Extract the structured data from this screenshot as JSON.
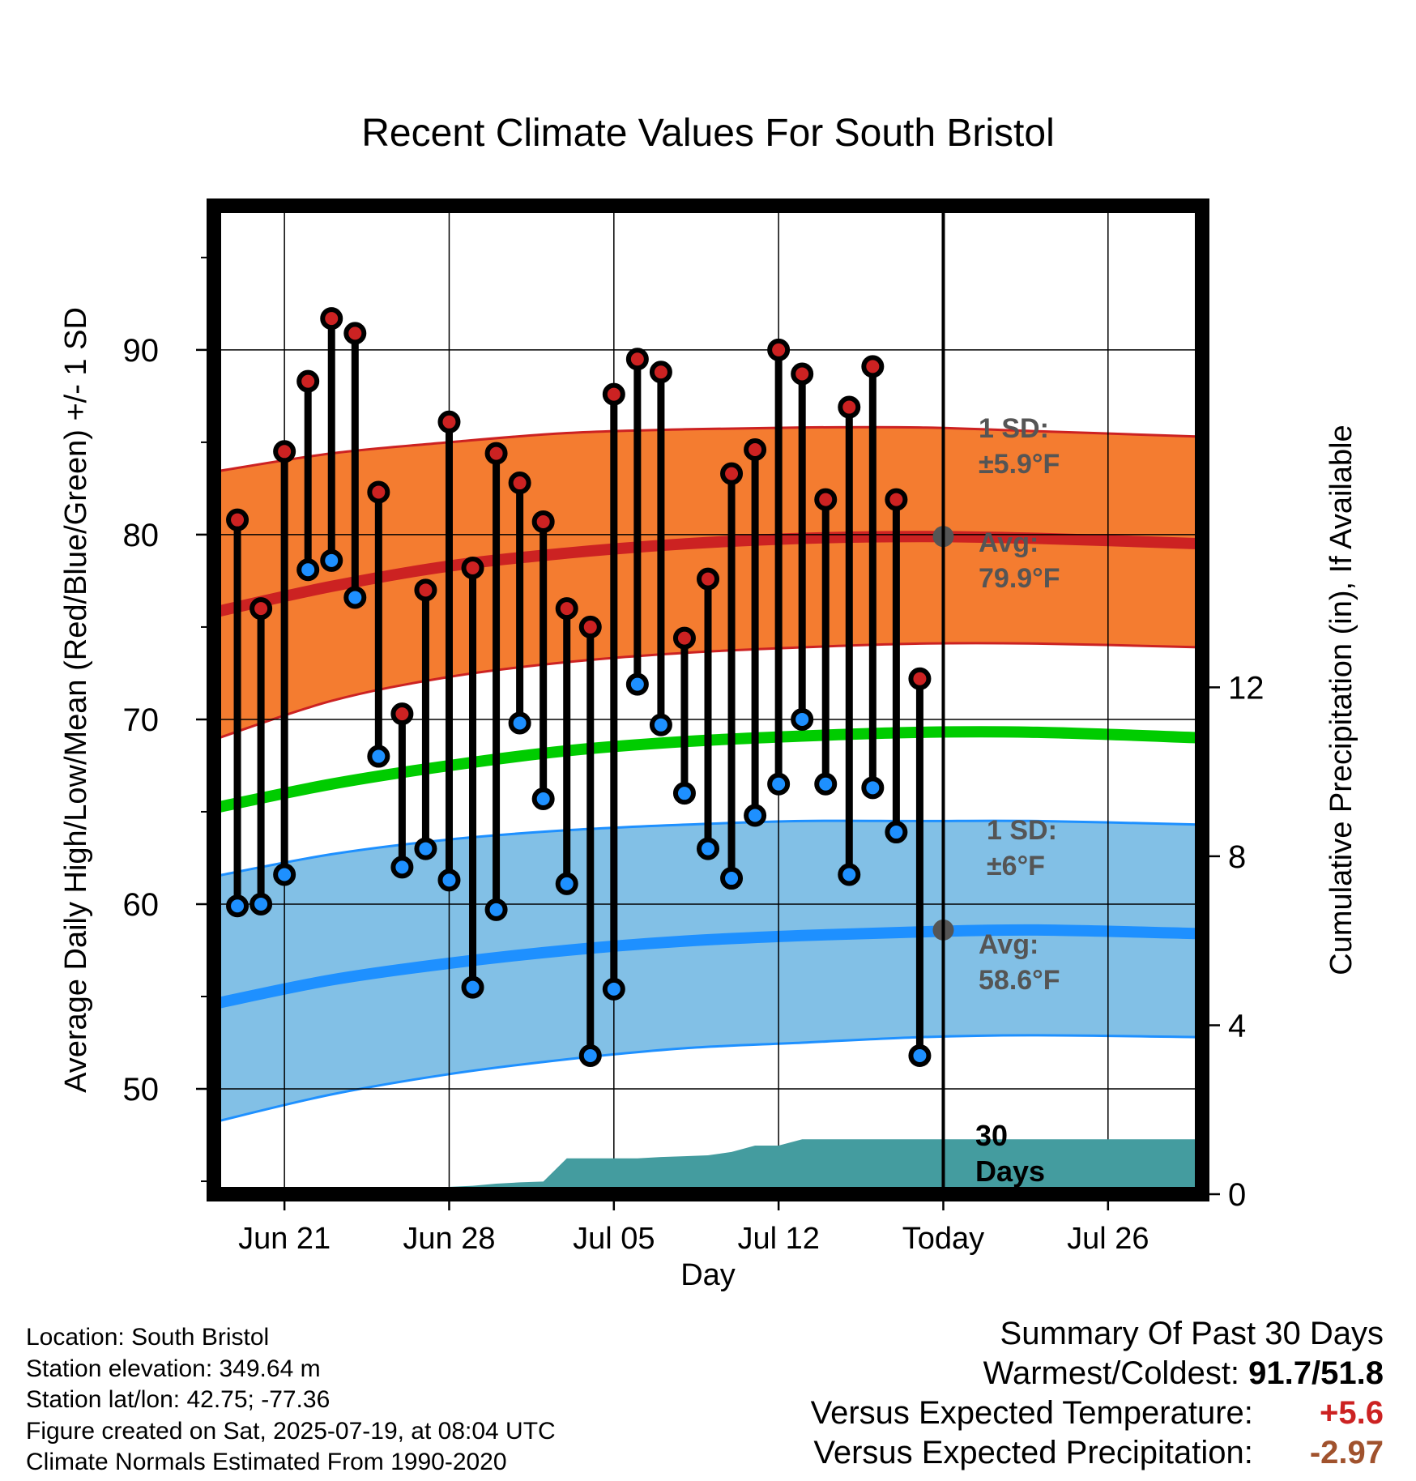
{
  "title": "Recent Climate Values For South Bristol",
  "footer": {
    "location": "Location: South Bristol",
    "elevation": "Station elevation: 349.64 m",
    "latlon": "Station lat/lon: 42.75; -77.36",
    "created": "Figure created on Sat, 2025-07-19, at 08:04 UTC",
    "normals": "Climate Normals Estimated From 1990-2020"
  },
  "summary": {
    "heading": "Summary Of Past 30 Days",
    "warmest_label": "Warmest/Coldest:",
    "warmest_value": "91.7/51.8",
    "temp_label": "Versus Expected Temperature:",
    "temp_value": "+5.6",
    "precip_label": "Versus Expected Precipitation:",
    "precip_value": "-2.97"
  },
  "chart_data": {
    "type": "line",
    "title": "Recent Climate Values For South Bristol",
    "xlabel": "Day",
    "ylabel": "Average Daily High/Low/Mean (Red/Blue/Green) +/- 1 SD",
    "y2label": "Cumulative Precipitation (in), If Available",
    "xlim": [
      "2025-06-18",
      "2025-07-30"
    ],
    "ylim": [
      44.3,
      97.8
    ],
    "y2lim": [
      0,
      23.4
    ],
    "x_ticks": [
      {
        "date": "2025-06-21",
        "label": "Jun 21"
      },
      {
        "date": "2025-06-28",
        "label": "Jun 28"
      },
      {
        "date": "2025-07-05",
        "label": "Jul 05"
      },
      {
        "date": "2025-07-12",
        "label": "Jul 12"
      },
      {
        "date": "2025-07-19",
        "label": "Today"
      },
      {
        "date": "2025-07-26",
        "label": "Jul 26"
      }
    ],
    "y_ticks": [
      50,
      60,
      70,
      80,
      90
    ],
    "y2_ticks": [
      0,
      4,
      8,
      12
    ],
    "grid": true,
    "colors": {
      "high": "#cc2222",
      "low": "#1e90ff",
      "mean": "#00cc00",
      "high_band": "#f47c30",
      "low_band": "#82c0e6",
      "precip": "#449c9f",
      "annotation": "#555555"
    },
    "daily_observed": [
      {
        "date": "2025-06-19",
        "high": 80.8,
        "low": 59.9
      },
      {
        "date": "2025-06-20",
        "high": 76.0,
        "low": 60.0
      },
      {
        "date": "2025-06-21",
        "high": 84.5,
        "low": 61.6
      },
      {
        "date": "2025-06-22",
        "high": 88.3,
        "low": 78.1
      },
      {
        "date": "2025-06-23",
        "high": 91.7,
        "low": 78.6
      },
      {
        "date": "2025-06-24",
        "high": 90.9,
        "low": 76.6
      },
      {
        "date": "2025-06-25",
        "high": 82.3,
        "low": 68.0
      },
      {
        "date": "2025-06-26",
        "high": 70.3,
        "low": 62.0
      },
      {
        "date": "2025-06-27",
        "high": 77.0,
        "low": 63.0
      },
      {
        "date": "2025-06-28",
        "high": 86.1,
        "low": 61.3
      },
      {
        "date": "2025-06-29",
        "high": 78.2,
        "low": 55.5
      },
      {
        "date": "2025-06-30",
        "high": 84.4,
        "low": 59.7
      },
      {
        "date": "2025-07-01",
        "high": 82.8,
        "low": 69.8
      },
      {
        "date": "2025-07-02",
        "high": 80.7,
        "low": 65.7
      },
      {
        "date": "2025-07-03",
        "high": 76.0,
        "low": 61.1
      },
      {
        "date": "2025-07-04",
        "high": 75.0,
        "low": 51.8
      },
      {
        "date": "2025-07-05",
        "high": 87.6,
        "low": 55.4
      },
      {
        "date": "2025-07-06",
        "high": 89.5,
        "low": 71.9
      },
      {
        "date": "2025-07-07",
        "high": 88.8,
        "low": 69.7
      },
      {
        "date": "2025-07-08",
        "high": 74.4,
        "low": 66.0
      },
      {
        "date": "2025-07-09",
        "high": 77.6,
        "low": 63.0
      },
      {
        "date": "2025-07-10",
        "high": 83.3,
        "low": 61.4
      },
      {
        "date": "2025-07-11",
        "high": 84.6,
        "low": 64.8
      },
      {
        "date": "2025-07-12",
        "high": 90.0,
        "low": 66.5
      },
      {
        "date": "2025-07-13",
        "high": 88.7,
        "low": 70.0
      },
      {
        "date": "2025-07-14",
        "high": 81.9,
        "low": 66.5
      },
      {
        "date": "2025-07-15",
        "high": 86.9,
        "low": 61.6
      },
      {
        "date": "2025-07-16",
        "high": 89.1,
        "low": 66.3
      },
      {
        "date": "2025-07-17",
        "high": 81.9,
        "low": 63.9
      },
      {
        "date": "2025-07-18",
        "high": 72.2,
        "low": 51.8
      }
    ],
    "normals": {
      "dates": [
        "2025-06-18",
        "2025-06-23",
        "2025-06-28",
        "2025-07-03",
        "2025-07-08",
        "2025-07-13",
        "2025-07-18",
        "2025-07-23",
        "2025-07-30"
      ],
      "high_mean": [
        75.8,
        77.2,
        78.3,
        79.0,
        79.5,
        79.8,
        79.9,
        79.8,
        79.5
      ],
      "high_sd_upper": [
        83.4,
        84.4,
        85.0,
        85.5,
        85.7,
        85.8,
        85.8,
        85.6,
        85.3
      ],
      "high_sd_lower": [
        68.9,
        71.0,
        72.3,
        73.1,
        73.6,
        73.9,
        74.1,
        74.1,
        73.9
      ],
      "mean": [
        65.2,
        66.5,
        67.5,
        68.3,
        68.8,
        69.1,
        69.3,
        69.3,
        69.0
      ],
      "low_mean": [
        54.6,
        55.9,
        56.8,
        57.5,
        58.0,
        58.3,
        58.5,
        58.6,
        58.4
      ],
      "low_sd_upper": [
        61.5,
        62.7,
        63.5,
        64.0,
        64.3,
        64.5,
        64.5,
        64.5,
        64.3
      ],
      "low_sd_lower": [
        48.2,
        49.7,
        50.8,
        51.6,
        52.2,
        52.5,
        52.8,
        52.9,
        52.8
      ]
    },
    "cumulative_precip": {
      "dates": [
        "2025-06-18",
        "2025-06-23",
        "2025-06-24",
        "2025-06-26",
        "2025-06-27",
        "2025-06-29",
        "2025-06-30",
        "2025-07-01",
        "2025-07-02",
        "2025-07-03",
        "2025-07-05",
        "2025-07-06",
        "2025-07-07",
        "2025-07-08",
        "2025-07-09",
        "2025-07-10",
        "2025-07-11",
        "2025-07-12",
        "2025-07-13",
        "2025-07-30"
      ],
      "values": [
        0,
        0,
        0,
        0,
        0.15,
        0.2,
        0.25,
        0.28,
        0.3,
        0.85,
        0.85,
        0.85,
        0.88,
        0.9,
        0.92,
        1.0,
        1.15,
        1.15,
        1.3,
        1.3
      ]
    },
    "annotations": {
      "high_sd": {
        "label": "1 SD:",
        "value": "±5.9°F"
      },
      "high_avg": {
        "label": "Avg:",
        "value": "79.9°F",
        "date": "2025-07-19",
        "y": 79.9
      },
      "low_sd": {
        "label": "1 SD:",
        "value": "±6°F"
      },
      "low_avg": {
        "label": "Avg:",
        "value": "58.6°F",
        "date": "2025-07-19",
        "y": 58.6
      },
      "today_line": {
        "date": "2025-07-19",
        "label_line1": "30",
        "label_line2": "Days"
      }
    }
  }
}
